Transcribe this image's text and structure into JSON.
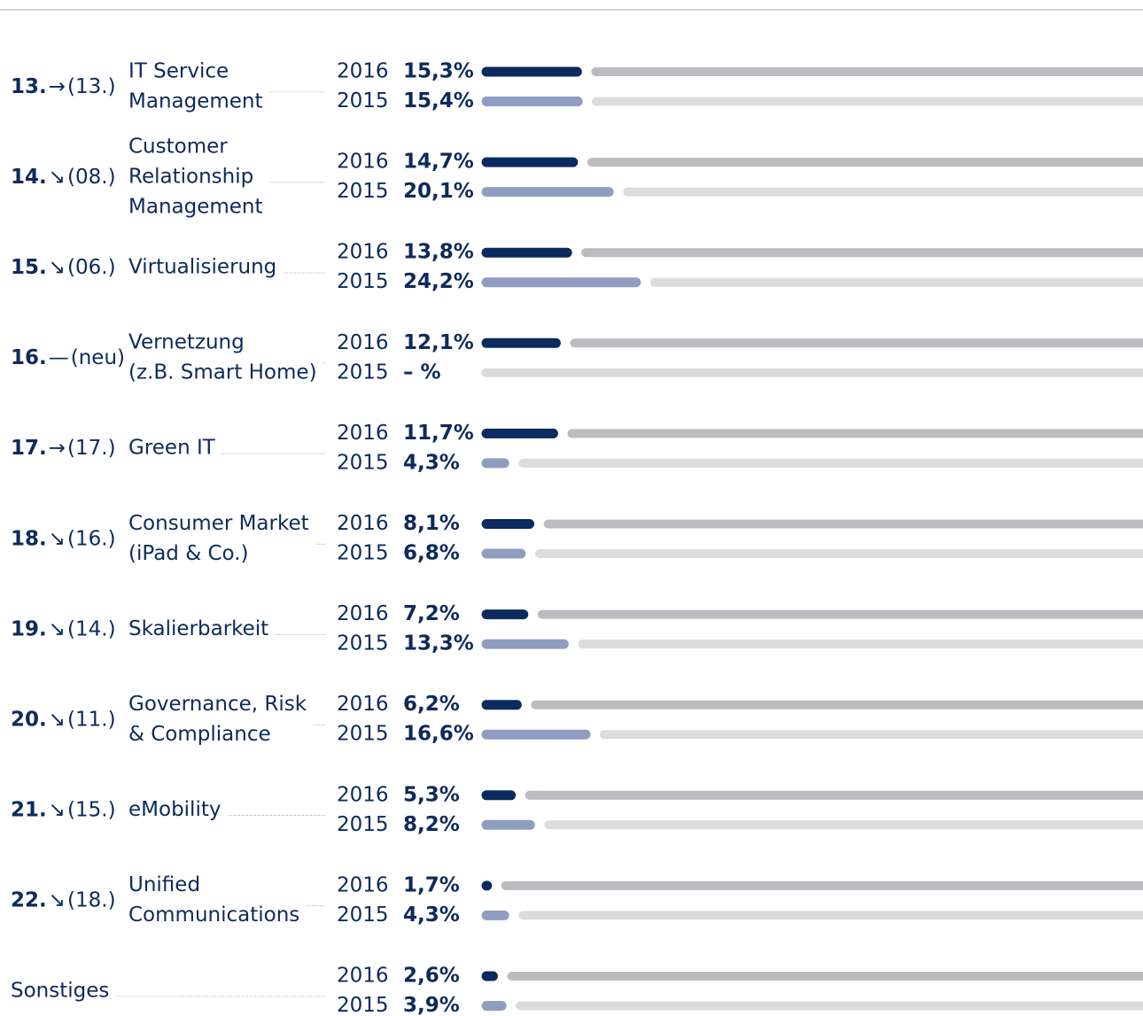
{
  "chart_data": {
    "type": "bar",
    "categories": [
      [
        "IT Service",
        "Management"
      ],
      [
        "Customer",
        "Relationship",
        "Management"
      ],
      [
        "Virtualisierung"
      ],
      [
        "Vernetzung",
        "(z.B. Smart Home)"
      ],
      [
        "Green IT"
      ],
      [
        "Consumer Market",
        "(iPad & Co.)"
      ],
      [
        "Skalierbarkeit"
      ],
      [
        "Governance, Risk",
        "& Compliance"
      ],
      [
        "eMobility"
      ],
      [
        "Unified",
        "Communications"
      ],
      [
        "Sonstiges"
      ]
    ],
    "ranks": [
      "13.",
      "14.",
      "15.",
      "16.",
      "17.",
      "18.",
      "19.",
      "20.",
      "21.",
      "22.",
      null
    ],
    "trends": [
      "→",
      "↘",
      "↘",
      "—",
      "→",
      "↘",
      "↘",
      "↘",
      "↘",
      "↘",
      null
    ],
    "previous_ranks": [
      "(13.)",
      "(08.)",
      "(06.)",
      "(neu)",
      "(17.)",
      "(16.)",
      "(14.)",
      "(11.)",
      "(15.)",
      "(18.)",
      null
    ],
    "xlim": [
      0,
      100
    ],
    "series": [
      {
        "name": "2016",
        "color": "#0b2a5e",
        "track_color": "#bcbcc0",
        "values": [
          15.3,
          14.7,
          13.8,
          12.1,
          11.7,
          8.1,
          7.2,
          6.2,
          5.3,
          1.7,
          2.6
        ],
        "value_labels": [
          "15,3%",
          "14,7%",
          "13,8%",
          "12,1%",
          "11,7%",
          "8,1%",
          "7,2%",
          "6,2%",
          "5,3%",
          "1,7%",
          "2,6%"
        ]
      },
      {
        "name": "2015",
        "color": "#8f9dc1",
        "track_color": "#dcdcdf",
        "values": [
          15.4,
          20.1,
          24.2,
          null,
          4.3,
          6.8,
          13.3,
          16.6,
          8.2,
          4.3,
          3.9
        ],
        "value_labels": [
          "15,4%",
          "20,1%",
          "24,2%",
          "– %",
          "4,3%",
          "6,8%",
          "13,3%",
          "16,6%",
          "8,2%",
          "4,3%",
          "3,9%"
        ]
      }
    ]
  }
}
